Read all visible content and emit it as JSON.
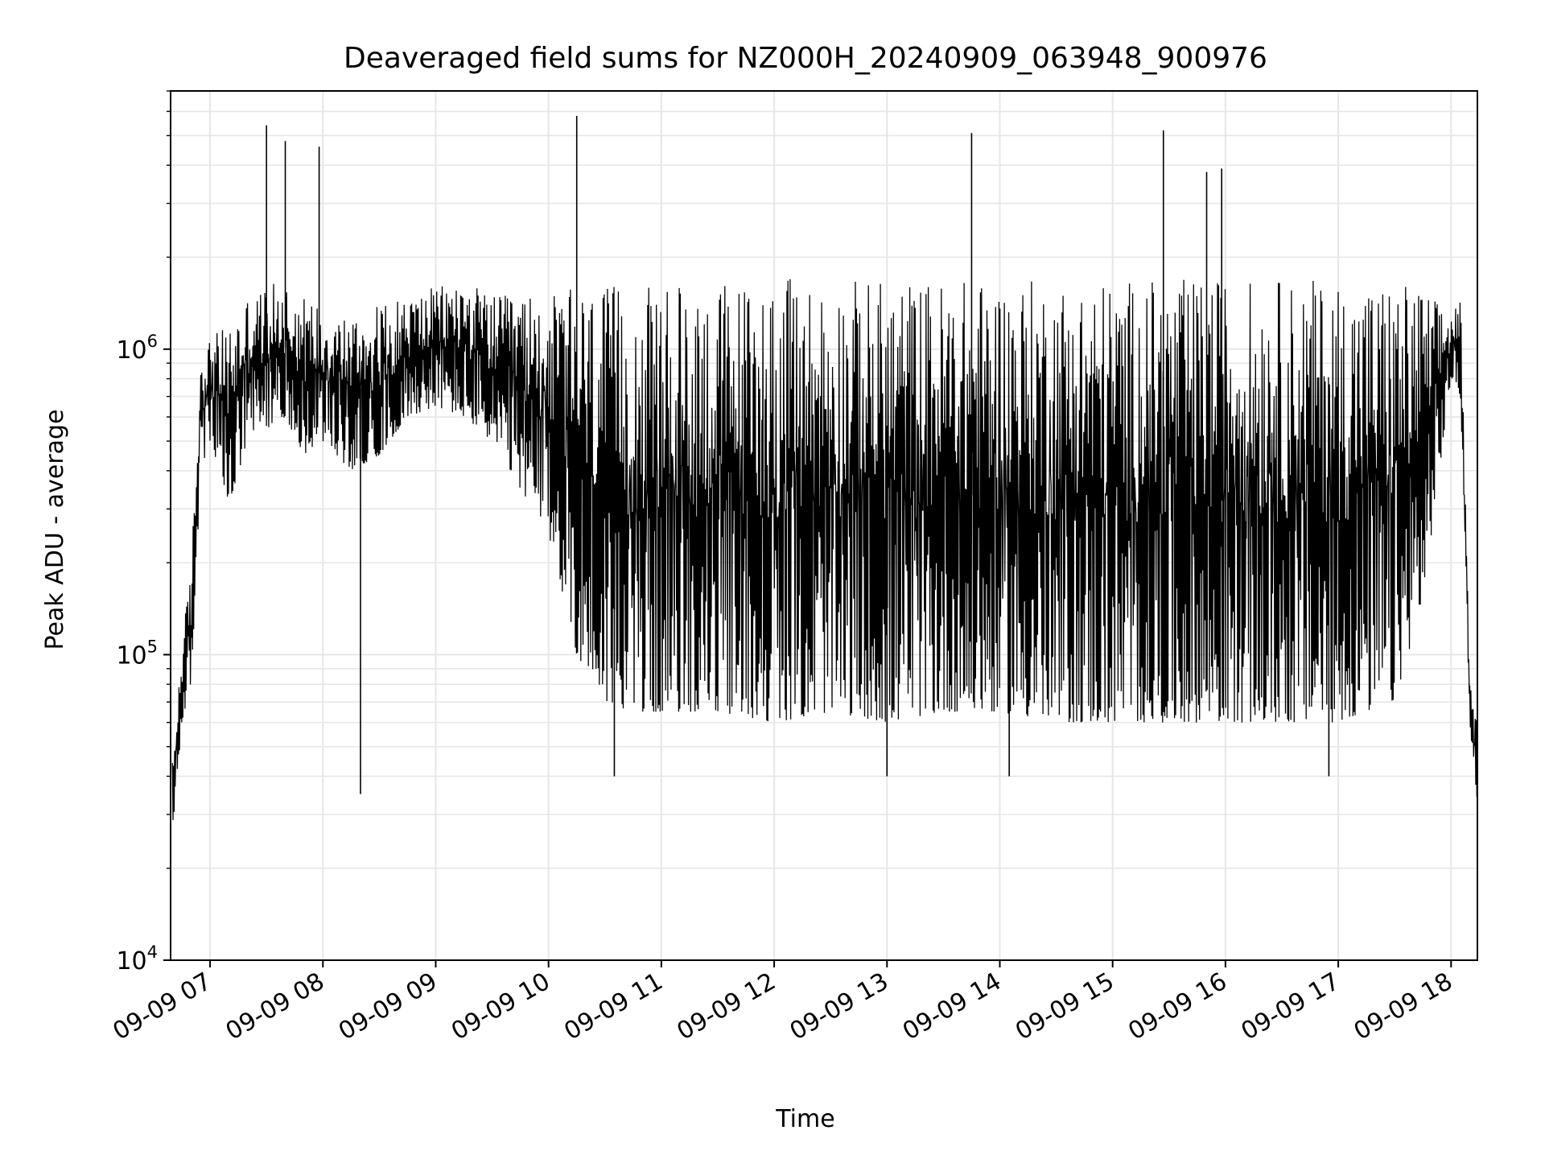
{
  "chart_data": {
    "type": "line",
    "title": "Deaveraged field sums for NZ000H_20240909_063948_900976",
    "xlabel": "Time",
    "ylabel": "Peak ADU - average",
    "yscale": "log",
    "ylim": [
      10000,
      7000000
    ],
    "xlim": [
      "09-09 06:39",
      "09-09 18:14"
    ],
    "grid": true,
    "line_color": "#000000",
    "x_ticks": [
      "09-09 07",
      "09-09 08",
      "09-09 09",
      "09-09 10",
      "09-09 11",
      "09-09 12",
      "09-09 13",
      "09-09 14",
      "09-09 15",
      "09-09 16",
      "09-09 17",
      "09-09 18"
    ],
    "y_ticks": [
      {
        "value": 10000,
        "base": "10",
        "exp": "4"
      },
      {
        "value": 100000,
        "base": "10",
        "exp": "5"
      },
      {
        "value": 1000000,
        "base": "10",
        "exp": "6"
      }
    ],
    "series": [
      {
        "x": [
          "09-09 06:40",
          "09-09 06:45",
          "09-09 06:50",
          "09-09 06:55",
          "09-09 07:00",
          "09-09 07:10",
          "09-09 07:20",
          "09-09 07:30",
          "09-09 07:40",
          "09-09 07:50",
          "09-09 08:00",
          "09-09 08:15",
          "09-09 08:30",
          "09-09 08:45",
          "09-09 09:00",
          "09-09 09:15",
          "09-09 09:30",
          "09-09 09:45",
          "09-09 10:00",
          "09-09 10:15",
          "09-09 10:30",
          "09-09 10:45",
          "09-09 11:00",
          "09-09 11:30",
          "09-09 12:00",
          "09-09 12:30",
          "09-09 13:00",
          "09-09 13:30",
          "09-09 14:00",
          "09-09 14:30",
          "09-09 15:00",
          "09-09 15:30",
          "09-09 16:00",
          "09-09 16:30",
          "09-09 17:00",
          "09-09 17:30",
          "09-09 17:45",
          "09-09 18:00",
          "09-09 18:05",
          "09-09 18:10",
          "09-09 18:14"
        ],
        "lo": [
          25000,
          60000,
          80000,
          400000,
          500000,
          300000,
          500000,
          550000,
          600000,
          450000,
          500000,
          400000,
          450000,
          600000,
          650000,
          600000,
          500000,
          350000,
          250000,
          100000,
          70000,
          65000,
          65000,
          65000,
          60000,
          65000,
          60000,
          65000,
          65000,
          60000,
          60000,
          60000,
          60000,
          60000,
          60000,
          70000,
          150000,
          800000,
          700000,
          60000,
          30000
        ],
        "hi": [
          45000,
          110000,
          200000,
          1000000,
          1100000,
          1200000,
          1500000,
          1600000,
          1700000,
          1500000,
          1400000,
          1300000,
          1400000,
          1500000,
          1600000,
          1700000,
          1500000,
          1500000,
          1500000,
          1600000,
          1600000,
          1600000,
          1600000,
          1700000,
          1700000,
          1700000,
          1700000,
          1700000,
          1700000,
          1700000,
          1700000,
          1700000,
          1700000,
          1700000,
          1700000,
          1700000,
          1600000,
          1300000,
          1500000,
          80000,
          60000
        ]
      }
    ],
    "spikes_high": [
      {
        "x": "09-09 07:30",
        "y": 5400000
      },
      {
        "x": "09-09 07:40",
        "y": 4800000
      },
      {
        "x": "09-09 07:58",
        "y": 4600000
      },
      {
        "x": "09-09 10:15",
        "y": 5800000
      },
      {
        "x": "09-09 13:45",
        "y": 5100000
      },
      {
        "x": "09-09 15:27",
        "y": 5200000
      },
      {
        "x": "09-09 15:50",
        "y": 3800000
      },
      {
        "x": "09-09 15:58",
        "y": 3900000
      }
    ],
    "spikes_low": [
      {
        "x": "09-09 08:20",
        "y": 35000
      },
      {
        "x": "09-09 10:35",
        "y": 40000
      },
      {
        "x": "09-09 13:00",
        "y": 40000
      },
      {
        "x": "09-09 14:05",
        "y": 40000
      },
      {
        "x": "09-09 16:55",
        "y": 40000
      }
    ]
  }
}
